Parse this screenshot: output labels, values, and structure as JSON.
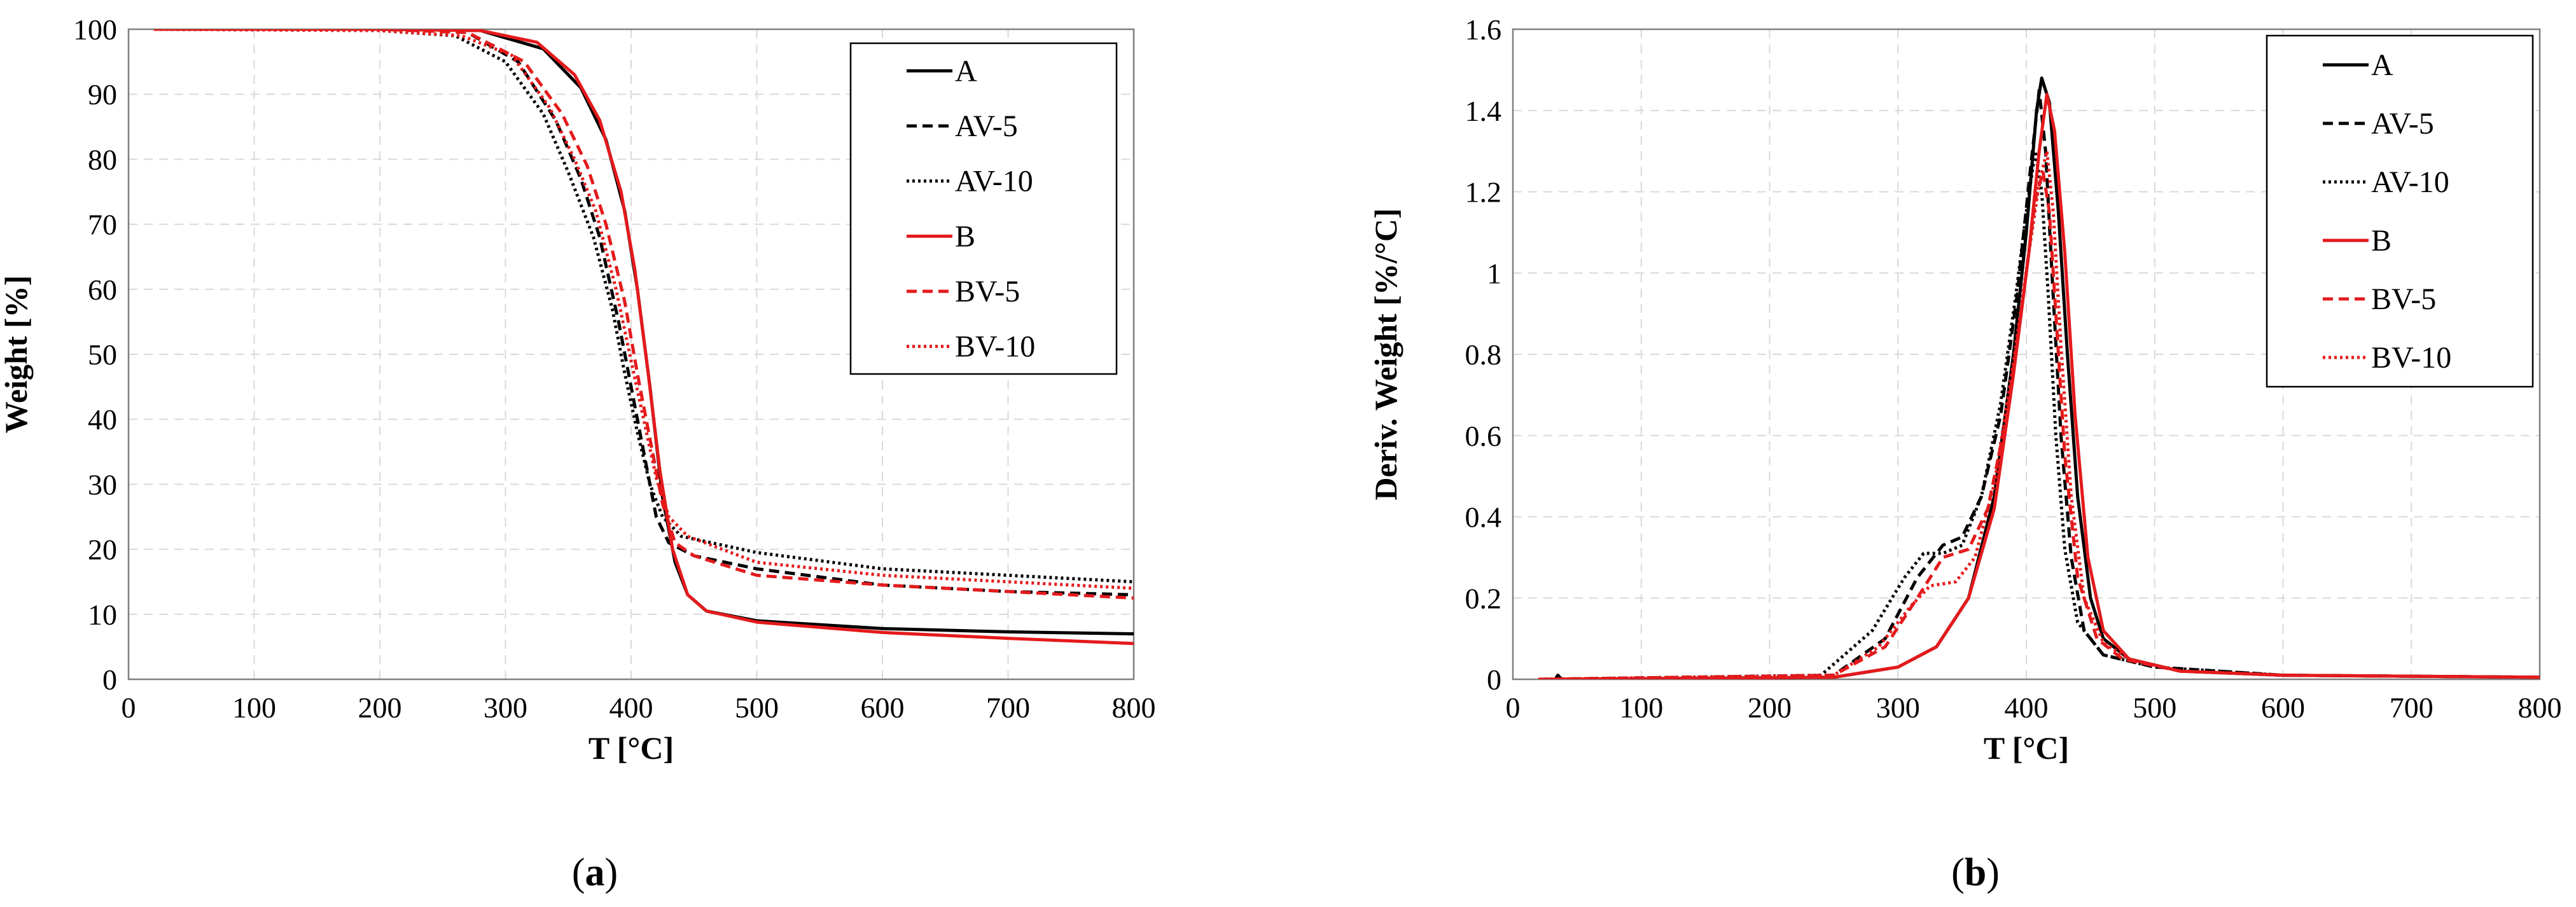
{
  "series_styles": {
    "A": {
      "color": "#000000",
      "dash": ""
    },
    "AV-5": {
      "color": "#000000",
      "dash": "16 9"
    },
    "AV-10": {
      "color": "#000000",
      "dash": "4 5"
    },
    "B": {
      "color": "#e41a1c",
      "dash": ""
    },
    "BV-5": {
      "color": "#e41a1c",
      "dash": "16 9"
    },
    "BV-10": {
      "color": "#e41a1c",
      "dash": "4 5"
    }
  },
  "chart_data": [
    {
      "type": "line",
      "panel": "a",
      "caption": "(a)",
      "caption_parts": {
        "open": "(",
        "letter": "a",
        "close": ")"
      },
      "xlabel": "T [°C]",
      "ylabel": "Weight [%]",
      "xlim": [
        0,
        800
      ],
      "ylim": [
        0,
        100
      ],
      "xticks": [
        0,
        100,
        200,
        300,
        400,
        500,
        600,
        700,
        800
      ],
      "yticks": [
        0,
        10,
        20,
        30,
        40,
        50,
        60,
        70,
        80,
        90,
        100
      ],
      "ytick_labels": [
        "0",
        "10",
        "20",
        "30",
        "40",
        "50",
        "60",
        "70",
        "80",
        "90",
        "100"
      ],
      "grid": true,
      "legend_position": "top-right",
      "series": [
        {
          "name": "A",
          "points": [
            [
              20,
              100
            ],
            [
              200,
              100
            ],
            [
              280,
              99.8
            ],
            [
              330,
              97
            ],
            [
              360,
              91
            ],
            [
              380,
              83
            ],
            [
              395,
              72
            ],
            [
              405,
              60
            ],
            [
              415,
              45
            ],
            [
              425,
              28
            ],
            [
              435,
              18
            ],
            [
              445,
              13
            ],
            [
              460,
              10.5
            ],
            [
              500,
              9
            ],
            [
              600,
              7.8
            ],
            [
              700,
              7.3
            ],
            [
              800,
              7
            ]
          ]
        },
        {
          "name": "AV-5",
          "points": [
            [
              20,
              100
            ],
            [
              200,
              100
            ],
            [
              270,
              99.5
            ],
            [
              310,
              95
            ],
            [
              340,
              86
            ],
            [
              360,
              77
            ],
            [
              375,
              68
            ],
            [
              390,
              55
            ],
            [
              400,
              45
            ],
            [
              410,
              35
            ],
            [
              420,
              25
            ],
            [
              430,
              21
            ],
            [
              450,
              19
            ],
            [
              500,
              17
            ],
            [
              600,
              14.5
            ],
            [
              700,
              13.5
            ],
            [
              800,
              13
            ]
          ]
        },
        {
          "name": "AV-10",
          "points": [
            [
              20,
              100
            ],
            [
              200,
              99.8
            ],
            [
              260,
              99
            ],
            [
              300,
              95
            ],
            [
              330,
              87
            ],
            [
              350,
              78
            ],
            [
              370,
              68
            ],
            [
              385,
              57
            ],
            [
              395,
              47
            ],
            [
              405,
              38
            ],
            [
              415,
              30
            ],
            [
              425,
              25
            ],
            [
              440,
              22
            ],
            [
              500,
              19.5
            ],
            [
              600,
              17
            ],
            [
              700,
              16
            ],
            [
              800,
              15
            ]
          ]
        },
        {
          "name": "B",
          "points": [
            [
              20,
              100
            ],
            [
              200,
              100
            ],
            [
              280,
              99.8
            ],
            [
              325,
              98
            ],
            [
              355,
              93
            ],
            [
              375,
              86
            ],
            [
              392,
              75
            ],
            [
              403,
              63
            ],
            [
              413,
              48
            ],
            [
              423,
              32
            ],
            [
              433,
              20
            ],
            [
              445,
              13
            ],
            [
              460,
              10.5
            ],
            [
              500,
              8.8
            ],
            [
              600,
              7.2
            ],
            [
              700,
              6.3
            ],
            [
              800,
              5.5
            ]
          ]
        },
        {
          "name": "BV-5",
          "points": [
            [
              20,
              100
            ],
            [
              200,
              100
            ],
            [
              270,
              99.5
            ],
            [
              315,
              95
            ],
            [
              345,
              87
            ],
            [
              365,
              79
            ],
            [
              380,
              70
            ],
            [
              395,
              58
            ],
            [
              405,
              47
            ],
            [
              415,
              37
            ],
            [
              425,
              27
            ],
            [
              435,
              21
            ],
            [
              450,
              19
            ],
            [
              500,
              16
            ],
            [
              600,
              14.5
            ],
            [
              700,
              13.5
            ],
            [
              800,
              12.5
            ]
          ]
        },
        {
          "name": "BV-10",
          "points": [
            [
              20,
              100
            ],
            [
              200,
              99.8
            ],
            [
              265,
              99
            ],
            [
              305,
              96
            ],
            [
              335,
              88
            ],
            [
              355,
              80
            ],
            [
              372,
              72
            ],
            [
              388,
              60
            ],
            [
              400,
              49
            ],
            [
              410,
              40
            ],
            [
              420,
              31
            ],
            [
              430,
              25
            ],
            [
              445,
              22
            ],
            [
              500,
              18
            ],
            [
              600,
              16
            ],
            [
              700,
              15
            ],
            [
              800,
              14
            ]
          ]
        }
      ]
    },
    {
      "type": "line",
      "panel": "b",
      "caption": "(b)",
      "caption_parts": {
        "open": "(",
        "letter": "b",
        "close": ")"
      },
      "xlabel": "T [°C]",
      "ylabel": "Deriv. Weight [%/°C]",
      "xlim": [
        0,
        800
      ],
      "ylim": [
        0,
        1.6
      ],
      "xticks": [
        0,
        100,
        200,
        300,
        400,
        500,
        600,
        700,
        800
      ],
      "yticks": [
        0,
        0.2,
        0.4,
        0.6,
        0.8,
        1.0,
        1.2,
        1.4,
        1.6
      ],
      "ytick_labels": [
        "0",
        "0.2",
        "0.4",
        "0.6",
        "0.8",
        "1",
        "1.2",
        "1.4",
        "1.6"
      ],
      "grid": true,
      "legend_position": "top-right",
      "series": [
        {
          "name": "A",
          "points": [
            [
              20,
              0
            ],
            [
              33,
              0
            ],
            [
              35,
              0.01
            ],
            [
              38,
              0
            ],
            [
              250,
              0.005
            ],
            [
              300,
              0.03
            ],
            [
              330,
              0.08
            ],
            [
              355,
              0.2
            ],
            [
              375,
              0.45
            ],
            [
              390,
              0.8
            ],
            [
              400,
              1.1
            ],
            [
              408,
              1.4
            ],
            [
              412,
              1.48
            ],
            [
              418,
              1.42
            ],
            [
              425,
              1.15
            ],
            [
              432,
              0.8
            ],
            [
              440,
              0.45
            ],
            [
              450,
              0.2
            ],
            [
              460,
              0.1
            ],
            [
              480,
              0.05
            ],
            [
              520,
              0.02
            ],
            [
              600,
              0.01
            ],
            [
              800,
              0.005
            ]
          ]
        },
        {
          "name": "AV-5",
          "points": [
            [
              20,
              0
            ],
            [
              250,
              0.01
            ],
            [
              290,
              0.1
            ],
            [
              315,
              0.25
            ],
            [
              335,
              0.33
            ],
            [
              350,
              0.35
            ],
            [
              365,
              0.45
            ],
            [
              380,
              0.65
            ],
            [
              393,
              0.95
            ],
            [
              403,
              1.25
            ],
            [
              410,
              1.45
            ],
            [
              415,
              1.3
            ],
            [
              420,
              1.0
            ],
            [
              427,
              0.6
            ],
            [
              435,
              0.3
            ],
            [
              445,
              0.12
            ],
            [
              460,
              0.06
            ],
            [
              500,
              0.03
            ],
            [
              600,
              0.01
            ],
            [
              800,
              0.005
            ]
          ]
        },
        {
          "name": "AV-10",
          "points": [
            [
              20,
              0
            ],
            [
              240,
              0.01
            ],
            [
              280,
              0.12
            ],
            [
              305,
              0.25
            ],
            [
              320,
              0.31
            ],
            [
              335,
              0.31
            ],
            [
              350,
              0.33
            ],
            [
              365,
              0.45
            ],
            [
              380,
              0.68
            ],
            [
              392,
              0.95
            ],
            [
              400,
              1.15
            ],
            [
              407,
              1.3
            ],
            [
              412,
              1.2
            ],
            [
              417,
              0.95
            ],
            [
              423,
              0.6
            ],
            [
              430,
              0.32
            ],
            [
              440,
              0.14
            ],
            [
              460,
              0.06
            ],
            [
              500,
              0.03
            ],
            [
              600,
              0.01
            ],
            [
              800,
              0.005
            ]
          ]
        },
        {
          "name": "B",
          "points": [
            [
              20,
              0
            ],
            [
              250,
              0.005
            ],
            [
              300,
              0.03
            ],
            [
              330,
              0.08
            ],
            [
              355,
              0.2
            ],
            [
              375,
              0.42
            ],
            [
              390,
              0.75
            ],
            [
              402,
              1.05
            ],
            [
              410,
              1.3
            ],
            [
              416,
              1.44
            ],
            [
              422,
              1.35
            ],
            [
              430,
              1.05
            ],
            [
              438,
              0.65
            ],
            [
              448,
              0.3
            ],
            [
              460,
              0.12
            ],
            [
              480,
              0.05
            ],
            [
              520,
              0.02
            ],
            [
              600,
              0.01
            ],
            [
              800,
              0.005
            ]
          ]
        },
        {
          "name": "BV-5",
          "points": [
            [
              20,
              0
            ],
            [
              250,
              0.01
            ],
            [
              290,
              0.08
            ],
            [
              315,
              0.2
            ],
            [
              335,
              0.3
            ],
            [
              355,
              0.32
            ],
            [
              370,
              0.42
            ],
            [
              385,
              0.65
            ],
            [
              398,
              0.95
            ],
            [
              407,
              1.18
            ],
            [
              413,
              1.25
            ],
            [
              418,
              1.15
            ],
            [
              423,
              0.9
            ],
            [
              430,
              0.55
            ],
            [
              440,
              0.25
            ],
            [
              455,
              0.1
            ],
            [
              475,
              0.05
            ],
            [
              520,
              0.02
            ],
            [
              600,
              0.01
            ],
            [
              800,
              0.005
            ]
          ]
        },
        {
          "name": "BV-10",
          "points": [
            [
              20,
              0
            ],
            [
              250,
              0.01
            ],
            [
              285,
              0.08
            ],
            [
              310,
              0.18
            ],
            [
              325,
              0.23
            ],
            [
              345,
              0.24
            ],
            [
              360,
              0.3
            ],
            [
              375,
              0.48
            ],
            [
              390,
              0.78
            ],
            [
              402,
              1.05
            ],
            [
              410,
              1.22
            ],
            [
              416,
              1.3
            ],
            [
              421,
              1.15
            ],
            [
              427,
              0.82
            ],
            [
              435,
              0.45
            ],
            [
              445,
              0.2
            ],
            [
              460,
              0.09
            ],
            [
              480,
              0.05
            ],
            [
              520,
              0.02
            ],
            [
              600,
              0.01
            ],
            [
              800,
              0.005
            ]
          ]
        }
      ]
    }
  ]
}
